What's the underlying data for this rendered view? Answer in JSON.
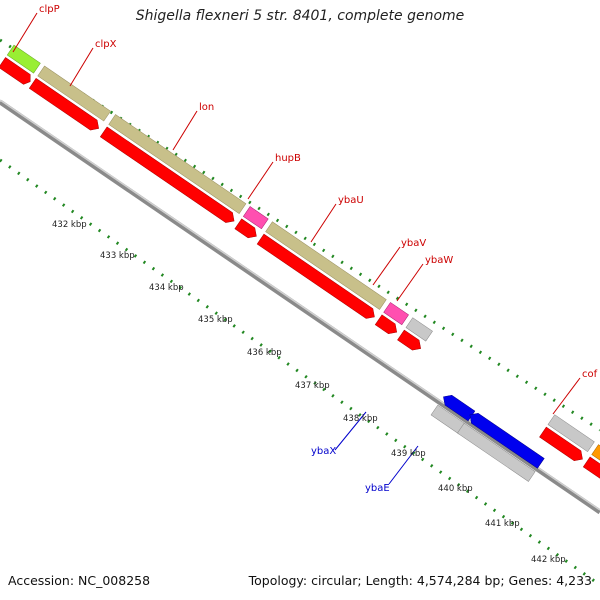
{
  "title": "Shigella flexneri 5 str. 8401, complete genome",
  "footer": {
    "accession": "Accession: NC_008258",
    "summary": "Topology: circular; Length: 4,574,284 bp; Genes: 4,233"
  },
  "colors": {
    "backbone": "#9a9a9a",
    "cds_red": "#ff0000",
    "olive": "#c8c08a",
    "magenta": "#ff4fb0",
    "grey_gene": "#c8c8c8",
    "blue": "#0000ee",
    "orange": "#ff9900",
    "green_light": "#99ee33",
    "teal": "#33ff99",
    "dots": "#228822",
    "label_red": "#cc0000",
    "label_blue": "#0000cc"
  },
  "ticks": [
    "432 kbp",
    "433 kbp",
    "434 kbp",
    "435 kbp",
    "436 kbp",
    "437 kbp",
    "438 kbp",
    "439 kbp",
    "440 kbp",
    "441 kbp",
    "442 kbp"
  ],
  "gene_labels": [
    {
      "name": "clpP",
      "strand": "forward"
    },
    {
      "name": "clpX",
      "strand": "forward"
    },
    {
      "name": "lon",
      "strand": "forward"
    },
    {
      "name": "hupB",
      "strand": "forward"
    },
    {
      "name": "ybaU",
      "strand": "forward"
    },
    {
      "name": "ybaV",
      "strand": "forward"
    },
    {
      "name": "ybaW",
      "strand": "forward"
    },
    {
      "name": "cof",
      "strand": "forward"
    },
    {
      "name": "ybaX",
      "strand": "reverse"
    },
    {
      "name": "ybaE",
      "strand": "reverse"
    }
  ]
}
